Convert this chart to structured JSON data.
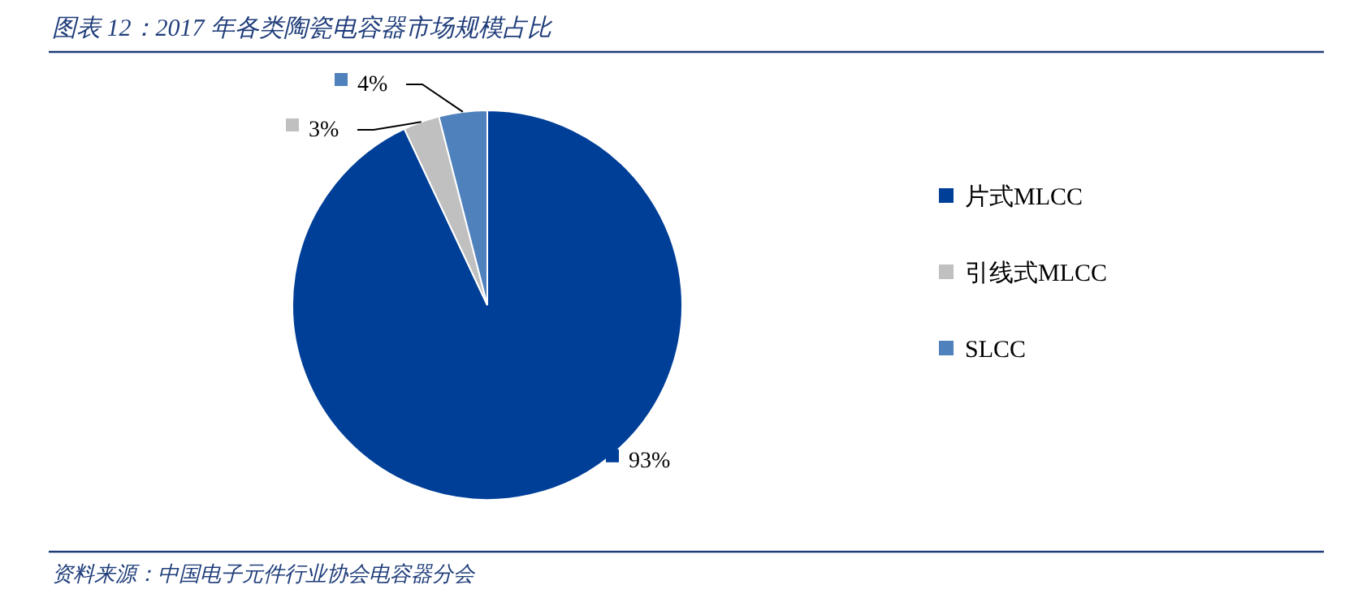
{
  "chart_data": {
    "type": "pie",
    "title": "图表 12：2017 年各类陶瓷电容器市场规模占比",
    "categories": [
      "片式MLCC",
      "引线式MLCC",
      "SLCC"
    ],
    "values": [
      93,
      3,
      4
    ],
    "colors": [
      "#003f98",
      "#c0c0c0",
      "#4f81bd"
    ],
    "value_labels": [
      "93%",
      "3%",
      "4%"
    ],
    "legend": "right",
    "annotations": [
      "资料来源：中国电子元件行业协会电容器分会"
    ]
  }
}
